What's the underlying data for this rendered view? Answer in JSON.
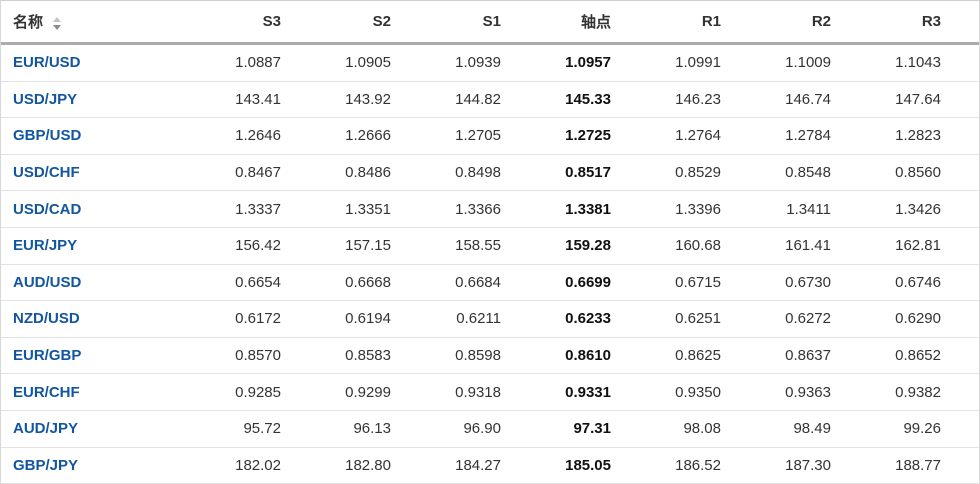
{
  "table": {
    "columns": [
      {
        "label": "名称",
        "sortable": true
      },
      {
        "label": "S3"
      },
      {
        "label": "S2"
      },
      {
        "label": "S1"
      },
      {
        "label": "轴点",
        "emphasis": true
      },
      {
        "label": "R1"
      },
      {
        "label": "R2"
      },
      {
        "label": "R3"
      }
    ],
    "rows": [
      {
        "name": "EUR/USD",
        "values": [
          "1.0887",
          "1.0905",
          "1.0939",
          "1.0957",
          "1.0991",
          "1.1009",
          "1.1043"
        ]
      },
      {
        "name": "USD/JPY",
        "values": [
          "143.41",
          "143.92",
          "144.82",
          "145.33",
          "146.23",
          "146.74",
          "147.64"
        ]
      },
      {
        "name": "GBP/USD",
        "values": [
          "1.2646",
          "1.2666",
          "1.2705",
          "1.2725",
          "1.2764",
          "1.2784",
          "1.2823"
        ]
      },
      {
        "name": "USD/CHF",
        "values": [
          "0.8467",
          "0.8486",
          "0.8498",
          "0.8517",
          "0.8529",
          "0.8548",
          "0.8560"
        ]
      },
      {
        "name": "USD/CAD",
        "values": [
          "1.3337",
          "1.3351",
          "1.3366",
          "1.3381",
          "1.3396",
          "1.3411",
          "1.3426"
        ]
      },
      {
        "name": "EUR/JPY",
        "values": [
          "156.42",
          "157.15",
          "158.55",
          "159.28",
          "160.68",
          "161.41",
          "162.81"
        ]
      },
      {
        "name": "AUD/USD",
        "values": [
          "0.6654",
          "0.6668",
          "0.6684",
          "0.6699",
          "0.6715",
          "0.6730",
          "0.6746"
        ]
      },
      {
        "name": "NZD/USD",
        "values": [
          "0.6172",
          "0.6194",
          "0.6211",
          "0.6233",
          "0.6251",
          "0.6272",
          "0.6290"
        ]
      },
      {
        "name": "EUR/GBP",
        "values": [
          "0.8570",
          "0.8583",
          "0.8598",
          "0.8610",
          "0.8625",
          "0.8637",
          "0.8652"
        ]
      },
      {
        "name": "EUR/CHF",
        "values": [
          "0.9285",
          "0.9299",
          "0.9318",
          "0.9331",
          "0.9350",
          "0.9363",
          "0.9382"
        ]
      },
      {
        "name": "AUD/JPY",
        "values": [
          "95.72",
          "96.13",
          "96.90",
          "97.31",
          "98.08",
          "98.49",
          "99.26"
        ]
      },
      {
        "name": "GBP/JPY",
        "values": [
          "182.02",
          "182.80",
          "184.27",
          "185.05",
          "186.52",
          "187.30",
          "188.77"
        ]
      }
    ]
  },
  "icons": {
    "sort": "sort-arrows-icon"
  },
  "colors": {
    "pair_link": "#1256a0",
    "number_text": "#333333",
    "pivot_text": "#111111",
    "header_rule": "#ababab",
    "row_rule": "#e3e3e3"
  }
}
